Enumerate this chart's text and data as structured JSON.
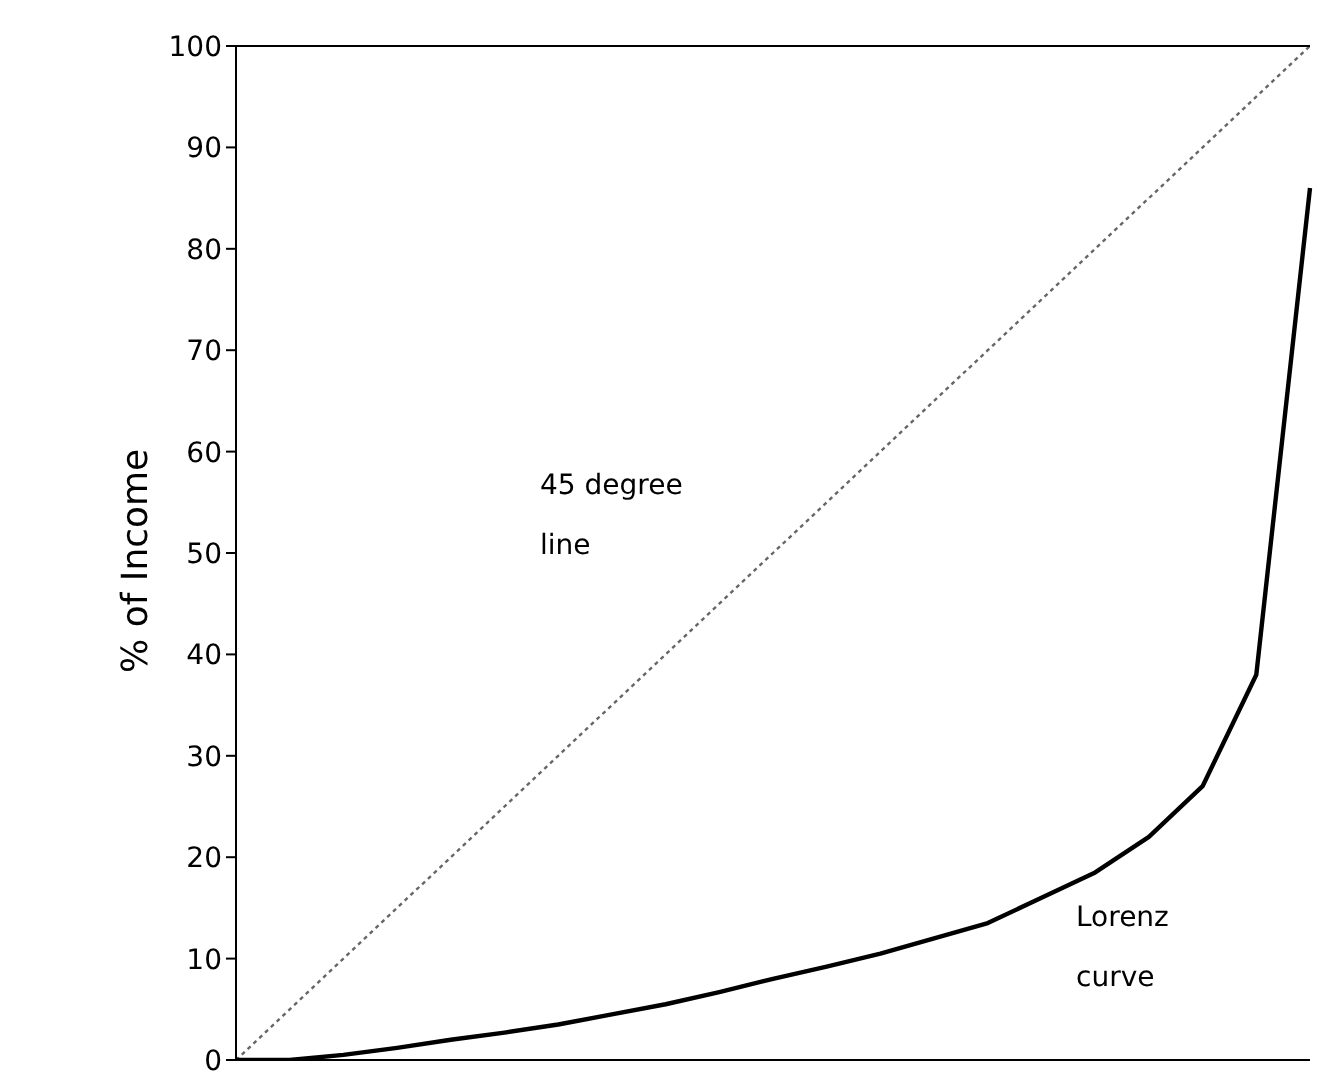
{
  "chart_data": {
    "type": "line",
    "ylabel": "% of Income",
    "categories": [
      null,
      null,
      null,
      null,
      null,
      null,
      null,
      null,
      null,
      null,
      null,
      null,
      null,
      null,
      null,
      null,
      null,
      null,
      null,
      null,
      null
    ],
    "ylim": [
      0,
      100
    ],
    "yticks": [
      0,
      10,
      20,
      30,
      40,
      50,
      60,
      70,
      80,
      90,
      100
    ],
    "tick_labels": "y",
    "grid": false,
    "legend": false,
    "marker": "none",
    "series": [
      {
        "color": "#666666",
        "line_style": "dotted",
        "values": [
          0,
          5,
          10,
          15,
          20,
          25,
          30,
          35,
          40,
          45,
          50,
          55,
          60,
          65,
          70,
          75,
          80,
          85,
          90,
          95,
          100
        ]
      },
      {
        "color": "#000000",
        "line_style": "solid",
        "values": [
          0,
          0,
          0.5,
          1.2,
          2,
          2.7,
          3.5,
          4.5,
          5.5,
          6.7,
          8,
          9.2,
          10.5,
          12,
          13.5,
          16,
          18.5,
          22,
          27,
          38,
          86
        ]
      }
    ],
    "annotations": [
      "45 degree line",
      "Lorenz curve"
    ]
  }
}
